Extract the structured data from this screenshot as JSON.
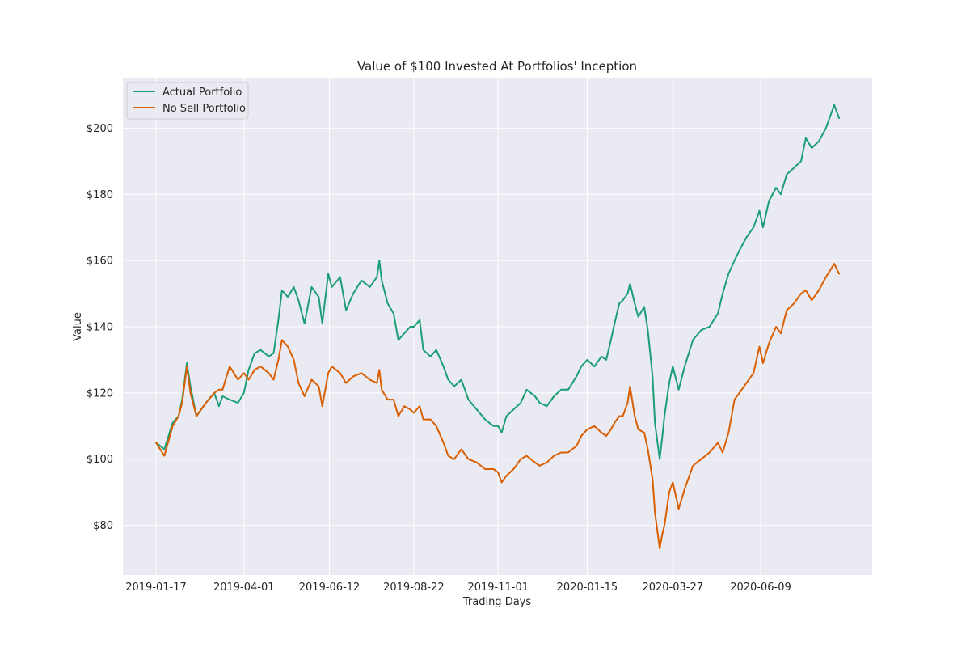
{
  "chart_data": {
    "type": "line",
    "title": "Value of $100 Invested At Portfolios' Inception",
    "xlabel": "Trading Days",
    "ylabel": "Value",
    "ylim": [
      65,
      215
    ],
    "x_tick_labels": [
      "2019-01-17",
      "2019-04-01",
      "2019-06-12",
      "2019-08-22",
      "2019-11-01",
      "2020-01-15",
      "2020-03-27",
      "2020-06-09"
    ],
    "y_ticks": [
      80,
      100,
      120,
      140,
      160,
      180,
      200
    ],
    "y_tick_labels": [
      "$80",
      "$100",
      "$120",
      "$140",
      "$160",
      "$180",
      "$200"
    ],
    "grid": true,
    "legend_position": "top-left",
    "colors": {
      "background": "#eaeaf2",
      "grid": "#ffffff",
      "actual": "#1b9e77",
      "no_sell": "#d95f02"
    },
    "series": [
      {
        "name": "Actual Portfolio",
        "points": [
          [
            "2019-01-17",
            105
          ],
          [
            "2019-01-24",
            103
          ],
          [
            "2019-01-31",
            111
          ],
          [
            "2019-02-05",
            113
          ],
          [
            "2019-02-08",
            118
          ],
          [
            "2019-02-12",
            129
          ],
          [
            "2019-02-15",
            122
          ],
          [
            "2019-02-20",
            113
          ],
          [
            "2019-02-28",
            117
          ],
          [
            "2019-03-07",
            120
          ],
          [
            "2019-03-11",
            116
          ],
          [
            "2019-03-14",
            119
          ],
          [
            "2019-03-20",
            118
          ],
          [
            "2019-03-27",
            117
          ],
          [
            "2019-04-01",
            120
          ],
          [
            "2019-04-05",
            127
          ],
          [
            "2019-04-10",
            132
          ],
          [
            "2019-04-15",
            133
          ],
          [
            "2019-04-22",
            131
          ],
          [
            "2019-04-26",
            132
          ],
          [
            "2019-04-30",
            142
          ],
          [
            "2019-05-03",
            151
          ],
          [
            "2019-05-08",
            149
          ],
          [
            "2019-05-13",
            152
          ],
          [
            "2019-05-17",
            148
          ],
          [
            "2019-05-22",
            141
          ],
          [
            "2019-05-28",
            152
          ],
          [
            "2019-06-03",
            149
          ],
          [
            "2019-06-06",
            141
          ],
          [
            "2019-06-11",
            156
          ],
          [
            "2019-06-14",
            152
          ],
          [
            "2019-06-21",
            155
          ],
          [
            "2019-06-26",
            145
          ],
          [
            "2019-07-02",
            150
          ],
          [
            "2019-07-09",
            154
          ],
          [
            "2019-07-16",
            152
          ],
          [
            "2019-07-22",
            155
          ],
          [
            "2019-07-24",
            160
          ],
          [
            "2019-07-26",
            154
          ],
          [
            "2019-07-31",
            147
          ],
          [
            "2019-08-05",
            144
          ],
          [
            "2019-08-09",
            136
          ],
          [
            "2019-08-14",
            138
          ],
          [
            "2019-08-19",
            140
          ],
          [
            "2019-08-22",
            140
          ],
          [
            "2019-08-27",
            142
          ],
          [
            "2019-08-30",
            133
          ],
          [
            "2019-09-05",
            131
          ],
          [
            "2019-09-10",
            133
          ],
          [
            "2019-09-16",
            128
          ],
          [
            "2019-09-20",
            124
          ],
          [
            "2019-09-25",
            122
          ],
          [
            "2019-10-01",
            124
          ],
          [
            "2019-10-07",
            118
          ],
          [
            "2019-10-14",
            115
          ],
          [
            "2019-10-21",
            112
          ],
          [
            "2019-10-28",
            110
          ],
          [
            "2019-11-01",
            110
          ],
          [
            "2019-11-04",
            108
          ],
          [
            "2019-11-08",
            113
          ],
          [
            "2019-11-14",
            115
          ],
          [
            "2019-11-20",
            117
          ],
          [
            "2019-11-25",
            121
          ],
          [
            "2019-12-02",
            119
          ],
          [
            "2019-12-06",
            117
          ],
          [
            "2019-12-12",
            116
          ],
          [
            "2019-12-18",
            119
          ],
          [
            "2019-12-24",
            121
          ],
          [
            "2019-12-30",
            121
          ],
          [
            "2020-01-06",
            125
          ],
          [
            "2020-01-10",
            128
          ],
          [
            "2020-01-15",
            130
          ],
          [
            "2020-01-21",
            128
          ],
          [
            "2020-01-27",
            131
          ],
          [
            "2020-01-31",
            130
          ],
          [
            "2020-02-04",
            136
          ],
          [
            "2020-02-07",
            141
          ],
          [
            "2020-02-11",
            147
          ],
          [
            "2020-02-14",
            148
          ],
          [
            "2020-02-18",
            150
          ],
          [
            "2020-02-20",
            153
          ],
          [
            "2020-02-24",
            147
          ],
          [
            "2020-02-27",
            143
          ],
          [
            "2020-03-03",
            146
          ],
          [
            "2020-03-06",
            139
          ],
          [
            "2020-03-10",
            125
          ],
          [
            "2020-03-12",
            111
          ],
          [
            "2020-03-16",
            100
          ],
          [
            "2020-03-18",
            106
          ],
          [
            "2020-03-20",
            113
          ],
          [
            "2020-03-24",
            123
          ],
          [
            "2020-03-27",
            128
          ],
          [
            "2020-04-01",
            121
          ],
          [
            "2020-04-06",
            128
          ],
          [
            "2020-04-13",
            136
          ],
          [
            "2020-04-20",
            139
          ],
          [
            "2020-04-27",
            140
          ],
          [
            "2020-05-04",
            144
          ],
          [
            "2020-05-08",
            150
          ],
          [
            "2020-05-13",
            156
          ],
          [
            "2020-05-18",
            160
          ],
          [
            "2020-05-22",
            163
          ],
          [
            "2020-05-28",
            167
          ],
          [
            "2020-06-03",
            170
          ],
          [
            "2020-06-08",
            175
          ],
          [
            "2020-06-11",
            170
          ],
          [
            "2020-06-16",
            178
          ],
          [
            "2020-06-22",
            182
          ],
          [
            "2020-06-26",
            180
          ],
          [
            "2020-07-01",
            186
          ],
          [
            "2020-07-07",
            188
          ],
          [
            "2020-07-13",
            190
          ],
          [
            "2020-07-17",
            197
          ],
          [
            "2020-07-22",
            194
          ],
          [
            "2020-07-28",
            196
          ],
          [
            "2020-08-03",
            200
          ],
          [
            "2020-08-10",
            207
          ],
          [
            "2020-08-14",
            203
          ]
        ]
      },
      {
        "name": "No Sell Portfolio",
        "points": [
          [
            "2019-01-17",
            105
          ],
          [
            "2019-01-24",
            101
          ],
          [
            "2019-01-31",
            110
          ],
          [
            "2019-02-05",
            113
          ],
          [
            "2019-02-08",
            117
          ],
          [
            "2019-02-12",
            128
          ],
          [
            "2019-02-15",
            120
          ],
          [
            "2019-02-20",
            113
          ],
          [
            "2019-02-28",
            117
          ],
          [
            "2019-03-07",
            120
          ],
          [
            "2019-03-11",
            121
          ],
          [
            "2019-03-14",
            121
          ],
          [
            "2019-03-20",
            128
          ],
          [
            "2019-03-27",
            124
          ],
          [
            "2019-04-01",
            126
          ],
          [
            "2019-04-05",
            124
          ],
          [
            "2019-04-10",
            127
          ],
          [
            "2019-04-15",
            128
          ],
          [
            "2019-04-22",
            126
          ],
          [
            "2019-04-26",
            124
          ],
          [
            "2019-04-30",
            130
          ],
          [
            "2019-05-03",
            136
          ],
          [
            "2019-05-08",
            134
          ],
          [
            "2019-05-13",
            130
          ],
          [
            "2019-05-17",
            123
          ],
          [
            "2019-05-22",
            119
          ],
          [
            "2019-05-28",
            124
          ],
          [
            "2019-06-03",
            122
          ],
          [
            "2019-06-06",
            116
          ],
          [
            "2019-06-11",
            126
          ],
          [
            "2019-06-14",
            128
          ],
          [
            "2019-06-21",
            126
          ],
          [
            "2019-06-26",
            123
          ],
          [
            "2019-07-02",
            125
          ],
          [
            "2019-07-09",
            126
          ],
          [
            "2019-07-16",
            124
          ],
          [
            "2019-07-22",
            123
          ],
          [
            "2019-07-24",
            127
          ],
          [
            "2019-07-26",
            121
          ],
          [
            "2019-07-31",
            118
          ],
          [
            "2019-08-05",
            118
          ],
          [
            "2019-08-09",
            113
          ],
          [
            "2019-08-14",
            116
          ],
          [
            "2019-08-19",
            115
          ],
          [
            "2019-08-22",
            114
          ],
          [
            "2019-08-27",
            116
          ],
          [
            "2019-08-30",
            112
          ],
          [
            "2019-09-05",
            112
          ],
          [
            "2019-09-10",
            110
          ],
          [
            "2019-09-16",
            105
          ],
          [
            "2019-09-20",
            101
          ],
          [
            "2019-09-25",
            100
          ],
          [
            "2019-10-01",
            103
          ],
          [
            "2019-10-07",
            100
          ],
          [
            "2019-10-14",
            99
          ],
          [
            "2019-10-21",
            97
          ],
          [
            "2019-10-28",
            97
          ],
          [
            "2019-11-01",
            96
          ],
          [
            "2019-11-04",
            93
          ],
          [
            "2019-11-08",
            95
          ],
          [
            "2019-11-14",
            97
          ],
          [
            "2019-11-20",
            100
          ],
          [
            "2019-11-25",
            101
          ],
          [
            "2019-12-02",
            99
          ],
          [
            "2019-12-06",
            98
          ],
          [
            "2019-12-12",
            99
          ],
          [
            "2019-12-18",
            101
          ],
          [
            "2019-12-24",
            102
          ],
          [
            "2019-12-30",
            102
          ],
          [
            "2020-01-06",
            104
          ],
          [
            "2020-01-10",
            107
          ],
          [
            "2020-01-15",
            109
          ],
          [
            "2020-01-21",
            110
          ],
          [
            "2020-01-27",
            108
          ],
          [
            "2020-01-31",
            107
          ],
          [
            "2020-02-04",
            109
          ],
          [
            "2020-02-07",
            111
          ],
          [
            "2020-02-11",
            113
          ],
          [
            "2020-02-14",
            113
          ],
          [
            "2020-02-18",
            117
          ],
          [
            "2020-02-20",
            122
          ],
          [
            "2020-02-24",
            113
          ],
          [
            "2020-02-27",
            109
          ],
          [
            "2020-03-03",
            108
          ],
          [
            "2020-03-06",
            103
          ],
          [
            "2020-03-10",
            94
          ],
          [
            "2020-03-12",
            84
          ],
          [
            "2020-03-16",
            73
          ],
          [
            "2020-03-18",
            77
          ],
          [
            "2020-03-20",
            80
          ],
          [
            "2020-03-24",
            90
          ],
          [
            "2020-03-27",
            93
          ],
          [
            "2020-04-01",
            85
          ],
          [
            "2020-04-06",
            91
          ],
          [
            "2020-04-13",
            98
          ],
          [
            "2020-04-20",
            100
          ],
          [
            "2020-04-27",
            102
          ],
          [
            "2020-05-04",
            105
          ],
          [
            "2020-05-08",
            102
          ],
          [
            "2020-05-13",
            108
          ],
          [
            "2020-05-18",
            118
          ],
          [
            "2020-05-22",
            120
          ],
          [
            "2020-05-28",
            123
          ],
          [
            "2020-06-03",
            126
          ],
          [
            "2020-06-08",
            134
          ],
          [
            "2020-06-11",
            129
          ],
          [
            "2020-06-16",
            135
          ],
          [
            "2020-06-22",
            140
          ],
          [
            "2020-06-26",
            138
          ],
          [
            "2020-07-01",
            145
          ],
          [
            "2020-07-07",
            147
          ],
          [
            "2020-07-13",
            150
          ],
          [
            "2020-07-17",
            151
          ],
          [
            "2020-07-22",
            148
          ],
          [
            "2020-07-28",
            151
          ],
          [
            "2020-08-03",
            155
          ],
          [
            "2020-08-10",
            159
          ],
          [
            "2020-08-14",
            156
          ]
        ]
      }
    ]
  }
}
